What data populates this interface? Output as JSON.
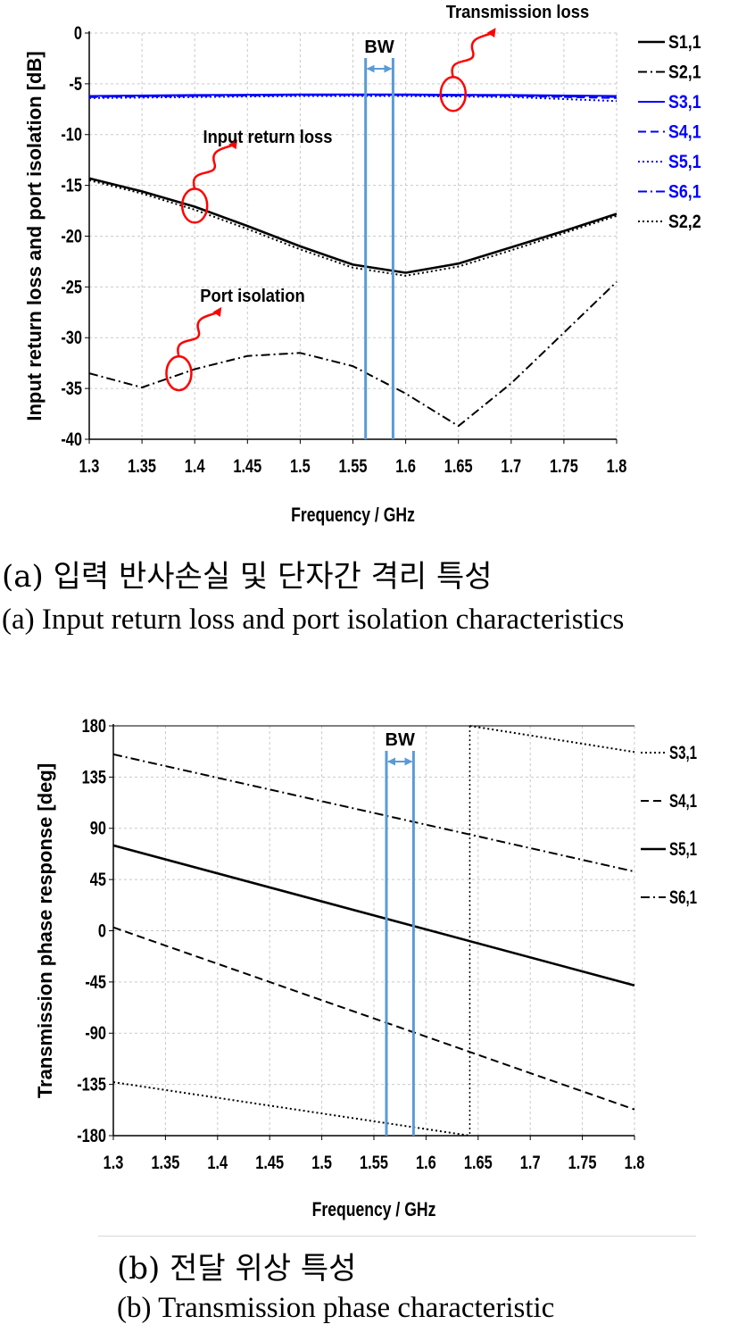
{
  "chart_data": [
    {
      "type": "line",
      "ylabel": "Input return loss and port isolation [dB]",
      "xlabel": "Frequency / GHz",
      "xlim": [
        1.3,
        1.8
      ],
      "ylim": [
        -40,
        0
      ],
      "xticks": [
        "1.3",
        "1.35",
        "1.4",
        "1.45",
        "1.5",
        "1.55",
        "1.6",
        "1.65",
        "1.7",
        "1.75",
        "1.8"
      ],
      "yticks": [
        "0",
        "-5",
        "-10",
        "-15",
        "-20",
        "-25",
        "-30",
        "-35",
        "-40"
      ],
      "grid": true,
      "legend_position": "right",
      "series": [
        {
          "name": "S1,1",
          "color": "#000000",
          "dash": "solid",
          "x": [
            1.3,
            1.35,
            1.4,
            1.45,
            1.5,
            1.55,
            1.6,
            1.65,
            1.7,
            1.75,
            1.8
          ],
          "y": [
            -14.3,
            -15.6,
            -17.1,
            -19,
            -21,
            -22.8,
            -23.6,
            -22.7,
            -21.1,
            -19.5,
            -17.8
          ]
        },
        {
          "name": "S2,1",
          "color": "#000000",
          "dash": "dashdot",
          "x": [
            1.3,
            1.35,
            1.4,
            1.45,
            1.5,
            1.55,
            1.6,
            1.65,
            1.7,
            1.75,
            1.8
          ],
          "y": [
            -33.5,
            -34.9,
            -33.1,
            -31.8,
            -31.5,
            -32.8,
            -35.5,
            -38.7,
            -34.5,
            -29.5,
            -24.5
          ]
        },
        {
          "name": "S3,1",
          "color": "#0000ff",
          "dash": "solid",
          "x": [
            1.3,
            1.4,
            1.5,
            1.6,
            1.7,
            1.8
          ],
          "y": [
            -6.2,
            -6.1,
            -6.05,
            -6.05,
            -6.1,
            -6.2
          ]
        },
        {
          "name": "S4,1",
          "color": "#0000ff",
          "dash": "dashed",
          "x": [
            1.3,
            1.4,
            1.5,
            1.6,
            1.7,
            1.8
          ],
          "y": [
            -6.3,
            -6.2,
            -6.1,
            -6.1,
            -6.2,
            -6.4
          ]
        },
        {
          "name": "S5,1",
          "color": "#0000ff",
          "dash": "dotted",
          "x": [
            1.3,
            1.4,
            1.5,
            1.6,
            1.7,
            1.8
          ],
          "y": [
            -6.4,
            -6.3,
            -6.2,
            -6.2,
            -6.3,
            -6.7
          ]
        },
        {
          "name": "S6,1",
          "color": "#0000ff",
          "dash": "dashdot",
          "x": [
            1.3,
            1.4,
            1.5,
            1.6,
            1.7,
            1.8
          ],
          "y": [
            -6.25,
            -6.15,
            -6.1,
            -6.1,
            -6.15,
            -6.3
          ]
        },
        {
          "name": "S2,2",
          "color": "#000000",
          "dash": "dotted",
          "x": [
            1.3,
            1.35,
            1.4,
            1.45,
            1.5,
            1.55,
            1.6,
            1.65,
            1.7,
            1.75,
            1.8
          ],
          "y": [
            -14.5,
            -15.8,
            -17.4,
            -19.3,
            -21.3,
            -23.1,
            -23.9,
            -23,
            -21.4,
            -19.7,
            -18
          ]
        }
      ],
      "bw_lines_x": [
        1.562,
        1.588
      ],
      "bw_label": "BW",
      "annotations": [
        {
          "text": "Transmission loss",
          "x": 1.645,
          "y": -6
        },
        {
          "text": "Input return loss",
          "x": 1.4,
          "y": -17
        },
        {
          "text": "Port isolation",
          "x": 1.385,
          "y": -33.5
        }
      ]
    },
    {
      "type": "line",
      "ylabel": "Transmission phase response [deg]",
      "xlabel": "Frequency / GHz",
      "xlim": [
        1.3,
        1.8
      ],
      "ylim": [
        -180,
        180
      ],
      "xticks": [
        "1.3",
        "1.35",
        "1.4",
        "1.45",
        "1.5",
        "1.55",
        "1.6",
        "1.65",
        "1.7",
        "1.75",
        "1.8"
      ],
      "yticks": [
        "180",
        "135",
        "90",
        "45",
        "0",
        "-45",
        "-90",
        "-135",
        "-180"
      ],
      "grid": true,
      "legend_position": "right",
      "series": [
        {
          "name": "S3,1",
          "color": "#000000",
          "dash": "dotted",
          "segments": [
            {
              "x": [
                1.3,
                1.642
              ],
              "y": [
                -133,
                -180
              ]
            },
            {
              "x": [
                1.642,
                1.8
              ],
              "y": [
                180,
                157
              ]
            }
          ]
        },
        {
          "name": "S4,1",
          "color": "#000000",
          "dash": "dashed",
          "segments": [
            {
              "x": [
                1.3,
                1.8
              ],
              "y": [
                3,
                -157
              ]
            }
          ]
        },
        {
          "name": "S5,1",
          "color": "#000000",
          "dash": "solid",
          "segments": [
            {
              "x": [
                1.3,
                1.8
              ],
              "y": [
                75,
                -48
              ]
            }
          ]
        },
        {
          "name": "S6,1",
          "color": "#000000",
          "dash": "dashdot",
          "segments": [
            {
              "x": [
                1.3,
                1.8
              ],
              "y": [
                155,
                52
              ]
            }
          ]
        }
      ],
      "vline_x": 1.642,
      "bw_lines_x": [
        1.562,
        1.588
      ],
      "bw_label": "BW"
    }
  ],
  "captions": {
    "a_korean": "(a) 입력 반사손실 및 단자간 격리 특성",
    "a_english": "(a) Input return loss and port isolation characteristics",
    "b_korean": "(b) 전달 위상 특성",
    "b_english": "(b) Transmission phase characteristic"
  }
}
